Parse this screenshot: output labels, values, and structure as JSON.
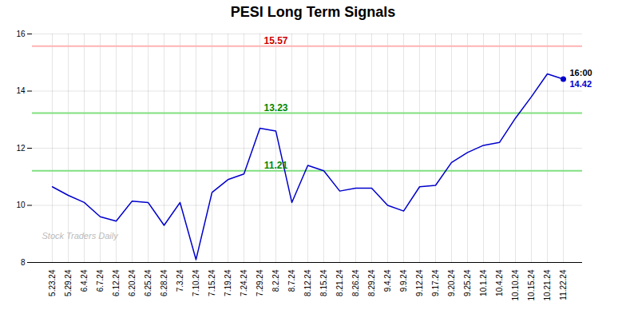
{
  "chart_data": {
    "type": "line",
    "title": "PESI Long Term Signals",
    "categories": [
      "5.23.24",
      "5.29.24",
      "6.4.24",
      "6.7.24",
      "6.12.24",
      "6.20.24",
      "6.25.24",
      "6.28.24",
      "7.3.24",
      "7.10.24",
      "7.15.24",
      "7.19.24",
      "7.24.24",
      "7.29.24",
      "8.2.24",
      "8.7.24",
      "8.12.24",
      "8.15.24",
      "8.21.24",
      "8.26.24",
      "8.29.24",
      "9.4.24",
      "9.9.24",
      "9.12.24",
      "9.17.24",
      "9.20.24",
      "9.25.24",
      "10.1.24",
      "10.4.24",
      "10.10.24",
      "10.15.24",
      "10.21.24",
      "11.22.24"
    ],
    "values": [
      10.65,
      10.35,
      10.1,
      9.6,
      9.45,
      10.15,
      10.1,
      9.3,
      10.1,
      8.1,
      10.45,
      10.9,
      11.1,
      12.7,
      12.6,
      10.1,
      11.4,
      11.21,
      10.5,
      10.6,
      10.6,
      10.0,
      9.8,
      10.65,
      10.7,
      11.5,
      11.85,
      12.1,
      12.2,
      13.05,
      13.8,
      14.6,
      14.42
    ],
    "color": "#0000cc",
    "ylim": [
      8,
      16
    ],
    "yticks": [
      8,
      10,
      12,
      14,
      16
    ],
    "grid": true,
    "hlines": [
      {
        "value": 15.57,
        "label": "15.57",
        "color": "#ffb3b3",
        "label_color": "#cc0000"
      },
      {
        "value": 13.23,
        "label": "13.23",
        "color": "#80e080",
        "label_color": "#008800"
      },
      {
        "value": 11.21,
        "label": "11.21",
        "color": "#80e080",
        "label_color": "#008800"
      }
    ],
    "last_point": {
      "color": "#0000cc",
      "annotations": [
        {
          "text": "16:00"
        },
        {
          "text": "14.42",
          "color": "#0000cc"
        }
      ]
    },
    "watermark": "Stock Traders Daily"
  }
}
